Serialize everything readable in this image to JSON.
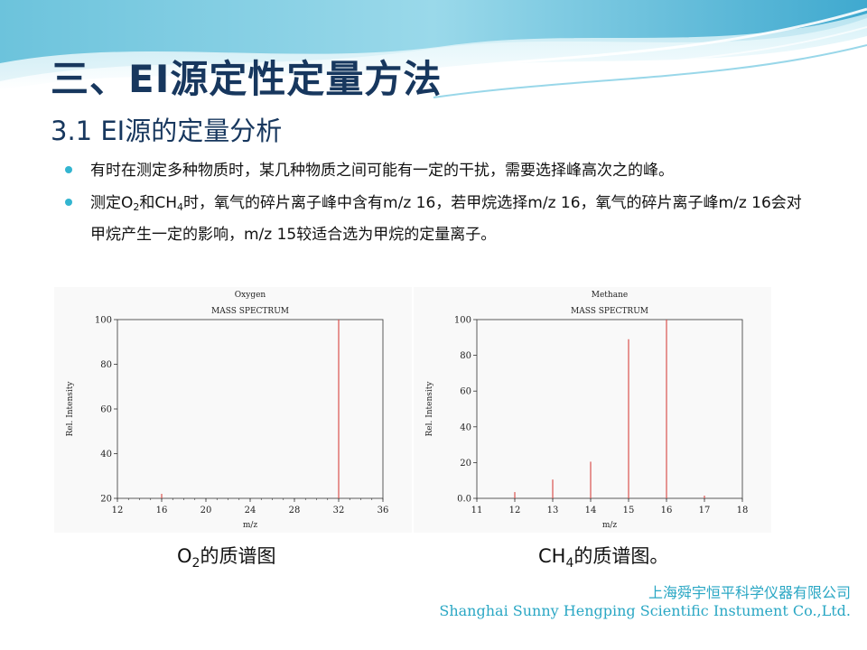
{
  "slide": {
    "title": "三、EI源定性定量方法",
    "subtitle": "3.1 EI源的定量分析",
    "bullets": [
      {
        "text": "有时在测定多种物质时，某几种物质之间可能有一定的干扰，需要选择峰高次之的峰。"
      },
      {
        "prefix": "测定O",
        "sub1": "2",
        "mid": "和CH",
        "sub2": "4",
        "text": "时，氧气的碎片离子峰中含有m/z 16，若甲烷选择m/z 16，氧气的碎片离子峰m/z 16会对甲烷产生一定的影响，m/z 15较适合选为甲烷的定量离子。"
      }
    ],
    "captions": {
      "left": {
        "main": "O",
        "sub": "2",
        "rest": "的质谱图"
      },
      "right": {
        "main": "CH",
        "sub": "4",
        "rest": "的质谱图。"
      }
    },
    "company": {
      "cn": "上海舜宇恒平科学仪器有限公司",
      "en": "Shanghai Sunny Hengping Scientific Instument Co.,Ltd."
    },
    "colors": {
      "title": "#17375e",
      "accent": "#33b5d0",
      "peak": "#d9534f",
      "company": "#2aa7c4"
    }
  },
  "chart_data": [
    {
      "type": "bar",
      "title": "Oxygen",
      "subtitle": "MASS SPECTRUM",
      "xlabel": "m/z",
      "ylabel": "Rel. Intensity",
      "xlim": [
        12,
        36
      ],
      "ylim": [
        20,
        100
      ],
      "xticks": [
        "12",
        "16",
        "20",
        "24",
        "28",
        "32",
        "36"
      ],
      "yticks": [
        "20",
        "40",
        "60",
        "80",
        "100"
      ],
      "x": [
        16,
        32
      ],
      "values": [
        22,
        100
      ]
    },
    {
      "type": "bar",
      "title": "Methane",
      "subtitle": "MASS SPECTRUM",
      "xlabel": "m/z",
      "ylabel": "Rel. Intensity",
      "xlim": [
        11,
        18
      ],
      "ylim": [
        0,
        100
      ],
      "xticks": [
        "11",
        "12",
        "13",
        "14",
        "15",
        "16",
        "17",
        "18"
      ],
      "yticks": [
        "0.0",
        "20",
        "40",
        "60",
        "80",
        "100"
      ],
      "x": [
        12,
        13,
        14,
        15,
        16,
        17
      ],
      "values": [
        3.5,
        10.5,
        20.5,
        89,
        100,
        1.5
      ]
    }
  ]
}
